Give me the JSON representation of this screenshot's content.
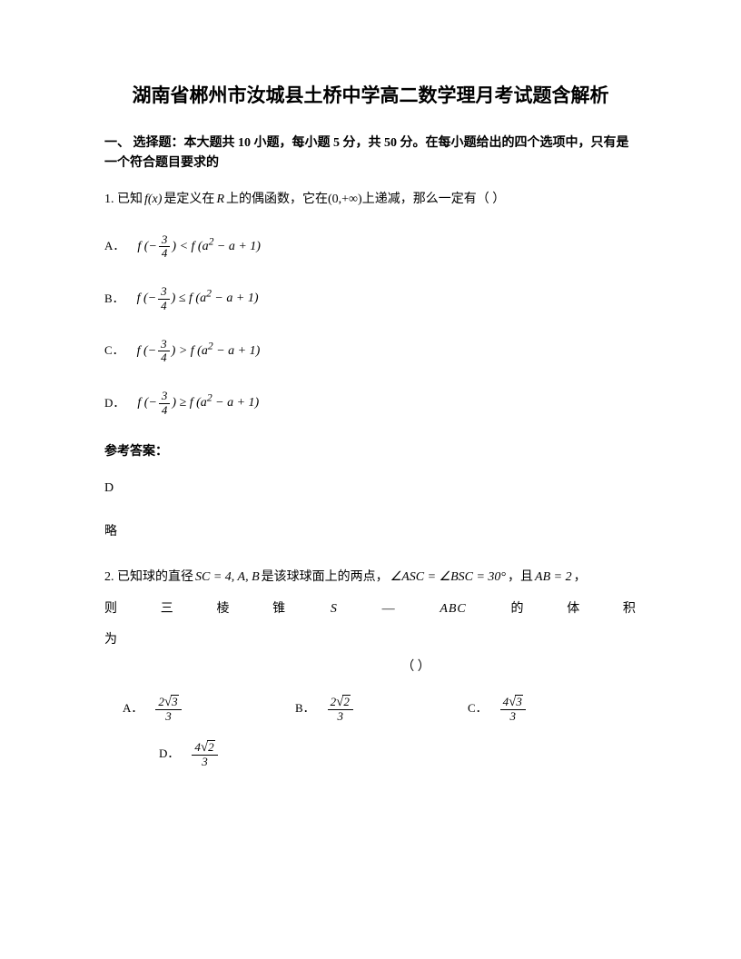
{
  "title": "湖南省郴州市汝城县土桥中学高二数学理月考试题含解析",
  "section_header": "一、 选择题：本大题共 10 小题，每小题 5 分，共 50 分。在每小题给出的四个选项中，只有是一个符合题目要求的",
  "q1": {
    "prefix": "1. 已知",
    "fx": "f(x)",
    "mid1": " 是定义在",
    "R": "R",
    "mid2": " 上的偶函数，它在",
    "interval": "(0,+∞)",
    "suffix": " 上递减，那么一定有（        ）",
    "options": {
      "A": "A．",
      "B": "B．",
      "C": "C．",
      "D": "D．"
    },
    "expr": {
      "lhs_f": "f (−",
      "lhs_close": ")",
      "lt": " < ",
      "le": " ≤ ",
      "gt": " > ",
      "ge": " ≥ ",
      "rhs": "f (a",
      "sup2": "2",
      "rhs_rest": " − a + 1)"
    },
    "answer_header": "参考答案：",
    "answer": "D",
    "brief": "略"
  },
  "q2": {
    "prefix": "2. 已知球的直径",
    "sc": "SC = 4, A, B",
    "mid1": " 是该球球面上的两点，",
    "angle": "∠ASC = ∠BSC = 30°",
    "mid2": "，且",
    "ab": "AB = 2",
    "suffix": "，",
    "line2_parts": [
      "则",
      "三",
      "棱",
      "锥",
      "S",
      "—",
      "ABC",
      "的",
      "体",
      "积"
    ],
    "line3": "为",
    "line4": "（        ）",
    "options": {
      "A": "A．",
      "B": "B．",
      "C": "C．",
      "D": "D．"
    }
  },
  "frac": {
    "n3": "3",
    "n4": "4",
    "n2": "2"
  },
  "sqrt": {
    "s3": "3",
    "s2": "2"
  },
  "colors": {
    "text": "#000000",
    "background": "#ffffff"
  },
  "typography": {
    "title_fontsize": 21,
    "body_fontsize": 14,
    "option_label_fontsize": 13
  }
}
